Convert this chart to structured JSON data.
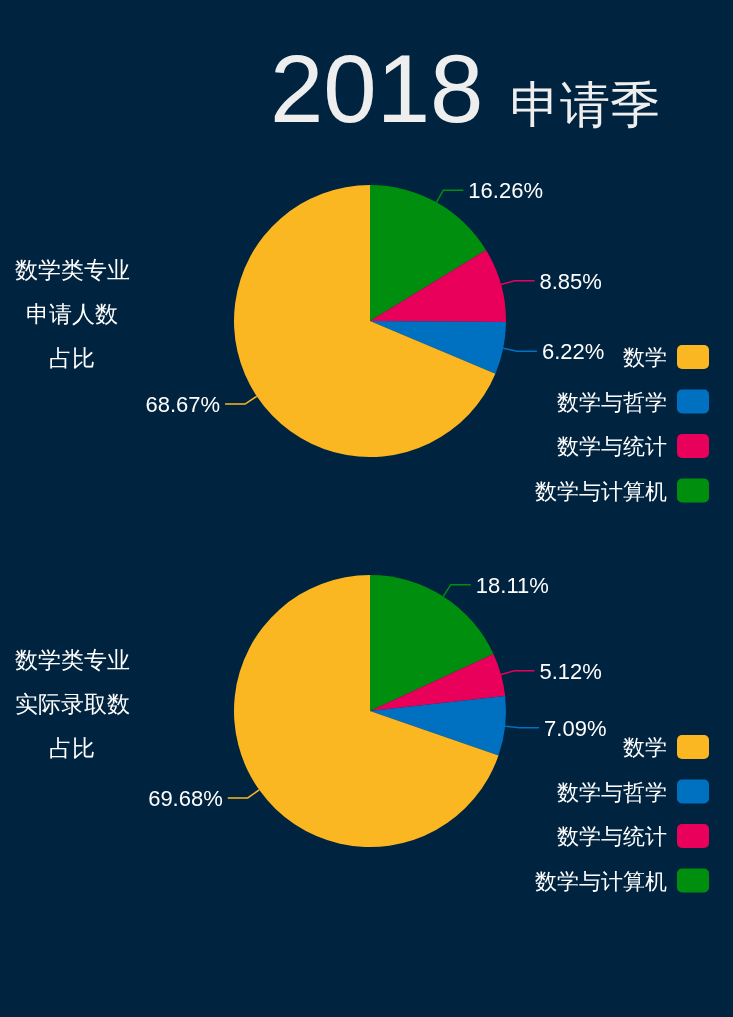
{
  "chart_data": [
    {
      "type": "pie",
      "title": "2018 申请季",
      "annotations": [
        "数学类专业",
        "申请人数",
        "占比"
      ],
      "categories": [
        "数学",
        "数学与哲学",
        "数学与统计",
        "数学与计算机"
      ],
      "values": [
        68.67,
        6.22,
        8.85,
        16.26
      ],
      "value_labels": [
        "68.67%",
        "6.22%",
        "8.85%",
        "16.26%"
      ],
      "colors": [
        "#fbb722",
        "#0070c0",
        "#e8005a",
        "#008e0e"
      ],
      "legend": "bottom right"
    },
    {
      "type": "pie",
      "annotations": [
        "数学类专业",
        "实际录取数",
        "占比"
      ],
      "categories": [
        "数学",
        "数学与哲学",
        "数学与统计",
        "数学与计算机"
      ],
      "values": [
        69.68,
        7.09,
        5.12,
        18.11
      ],
      "value_labels": [
        "69.68%",
        "7.09%",
        "5.12%",
        "18.11%"
      ],
      "colors": [
        "#fbb722",
        "#0070c0",
        "#e8005a",
        "#008e0e"
      ],
      "legend": "bottom right"
    }
  ]
}
